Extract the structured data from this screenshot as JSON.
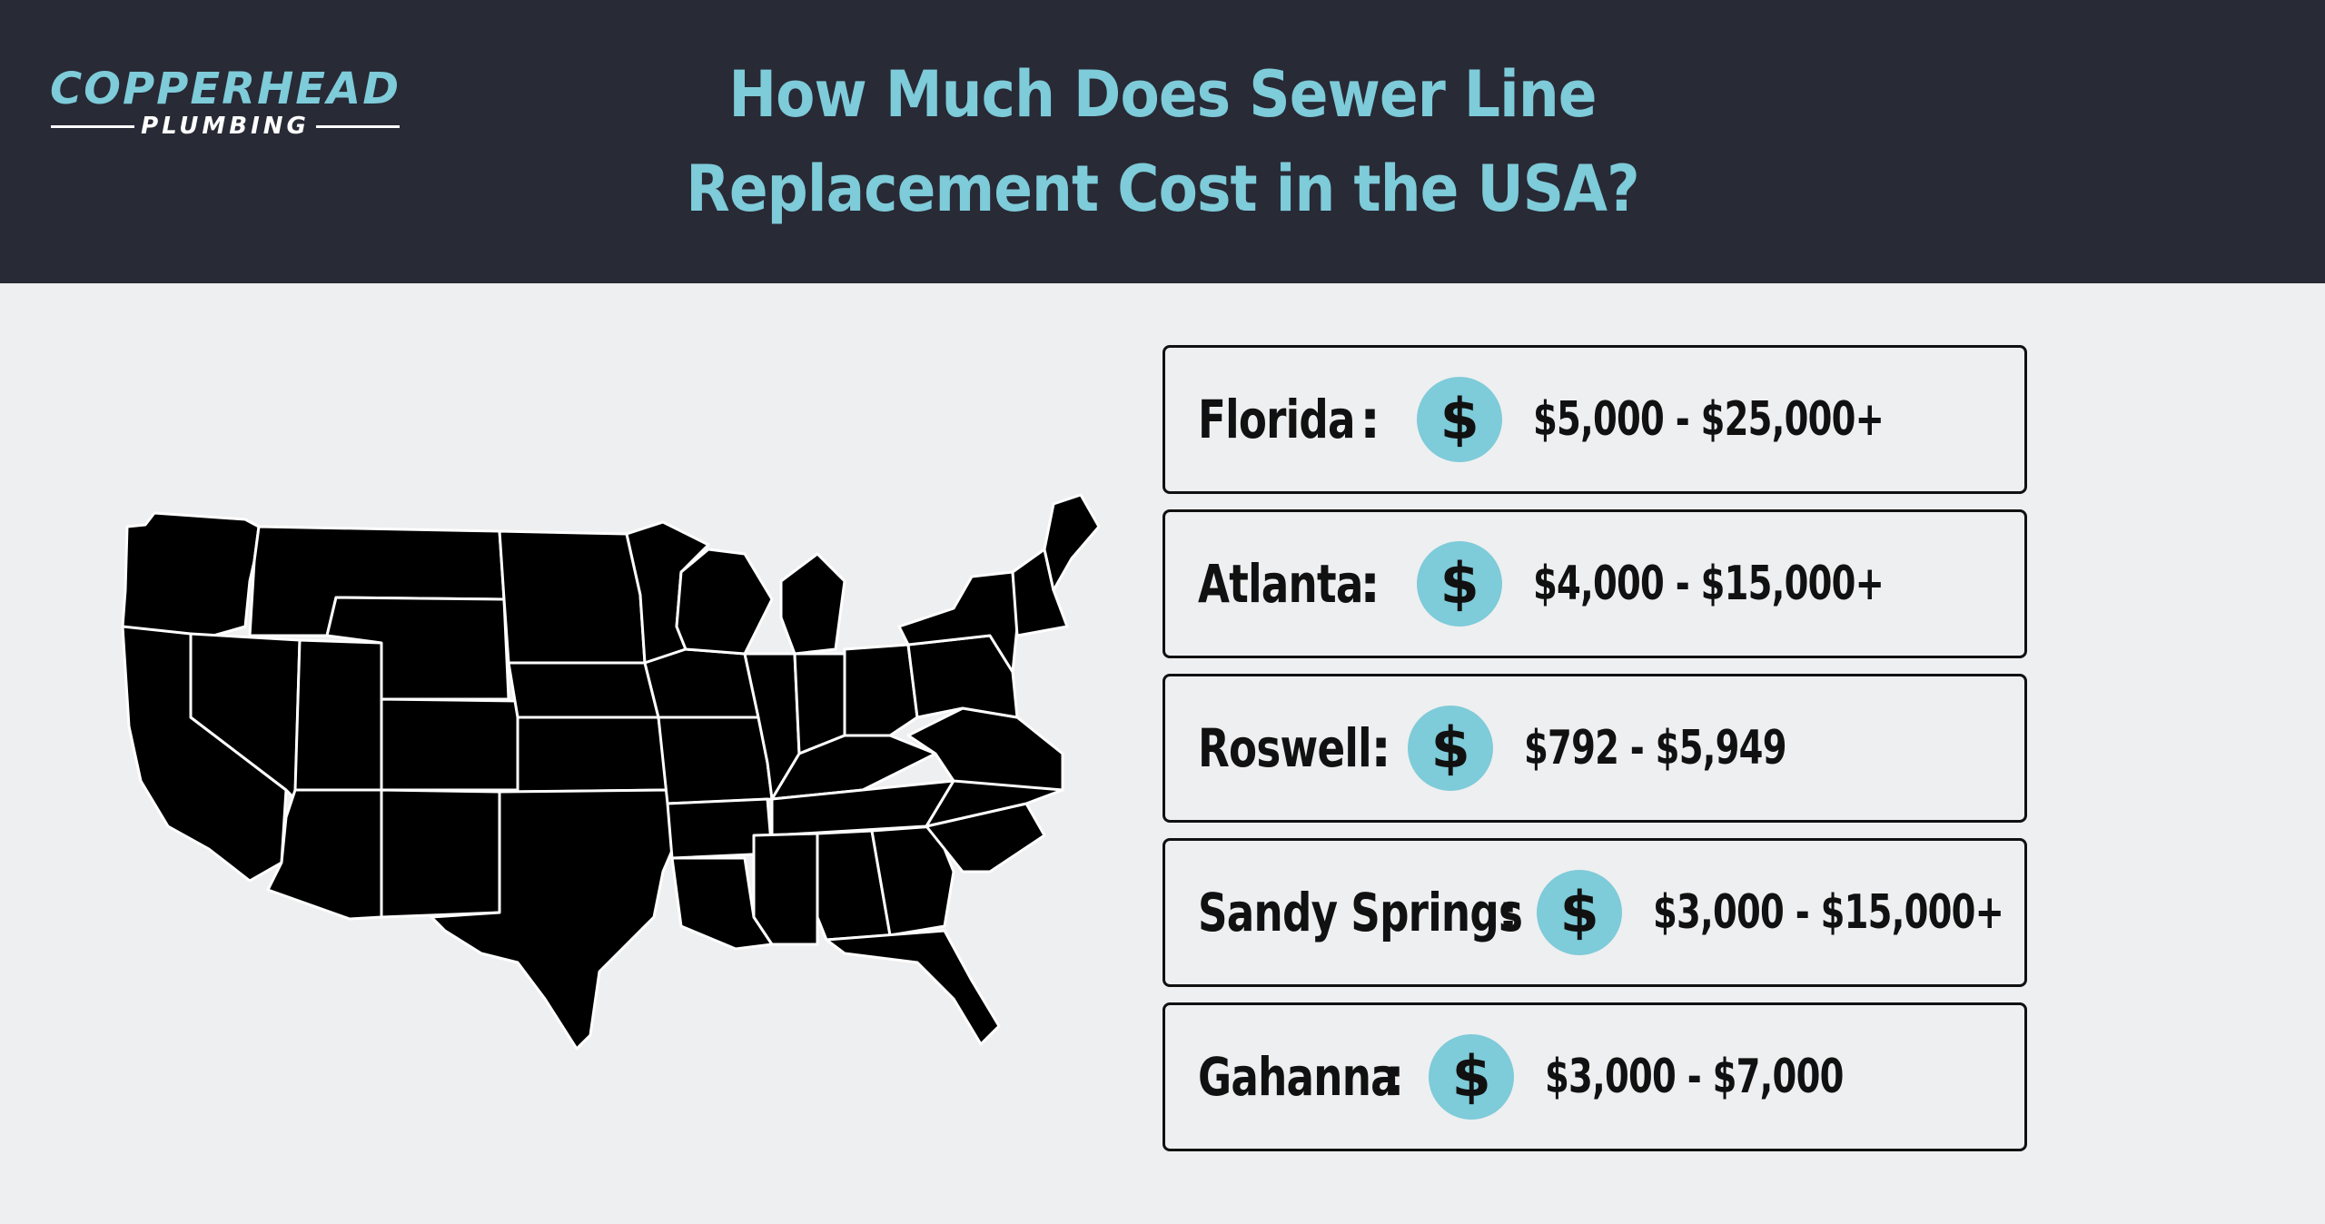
{
  "brand": {
    "name_top": "COPPERHEAD",
    "name_bottom": "PLUMBING"
  },
  "title": {
    "line1": "How Much Does Sewer Line",
    "line2": "Replacement Cost in the USA?"
  },
  "map": {
    "icon": "usa-states-map",
    "fill_color": "#000000",
    "border_color": "#ffffff"
  },
  "colors": {
    "header_bg": "#282a36",
    "accent": "#7ecbd9",
    "page_bg": "#eeeff0"
  },
  "coin_icon": "dollar-coin-icon",
  "coin_symbol": "$",
  "locations": [
    {
      "label": "Florida",
      "range": "$5,000 - $25,000+"
    },
    {
      "label": "Atlanta",
      "range": "$4,000 - $15,000+"
    },
    {
      "label": "Roswell",
      "range": "$792 - $5,949"
    },
    {
      "label": "Sandy Springs",
      "range": "$3,000 - $15,000+"
    },
    {
      "label": "Gahanna",
      "range": "$3,000 - $7,000"
    }
  ],
  "separator": ":"
}
